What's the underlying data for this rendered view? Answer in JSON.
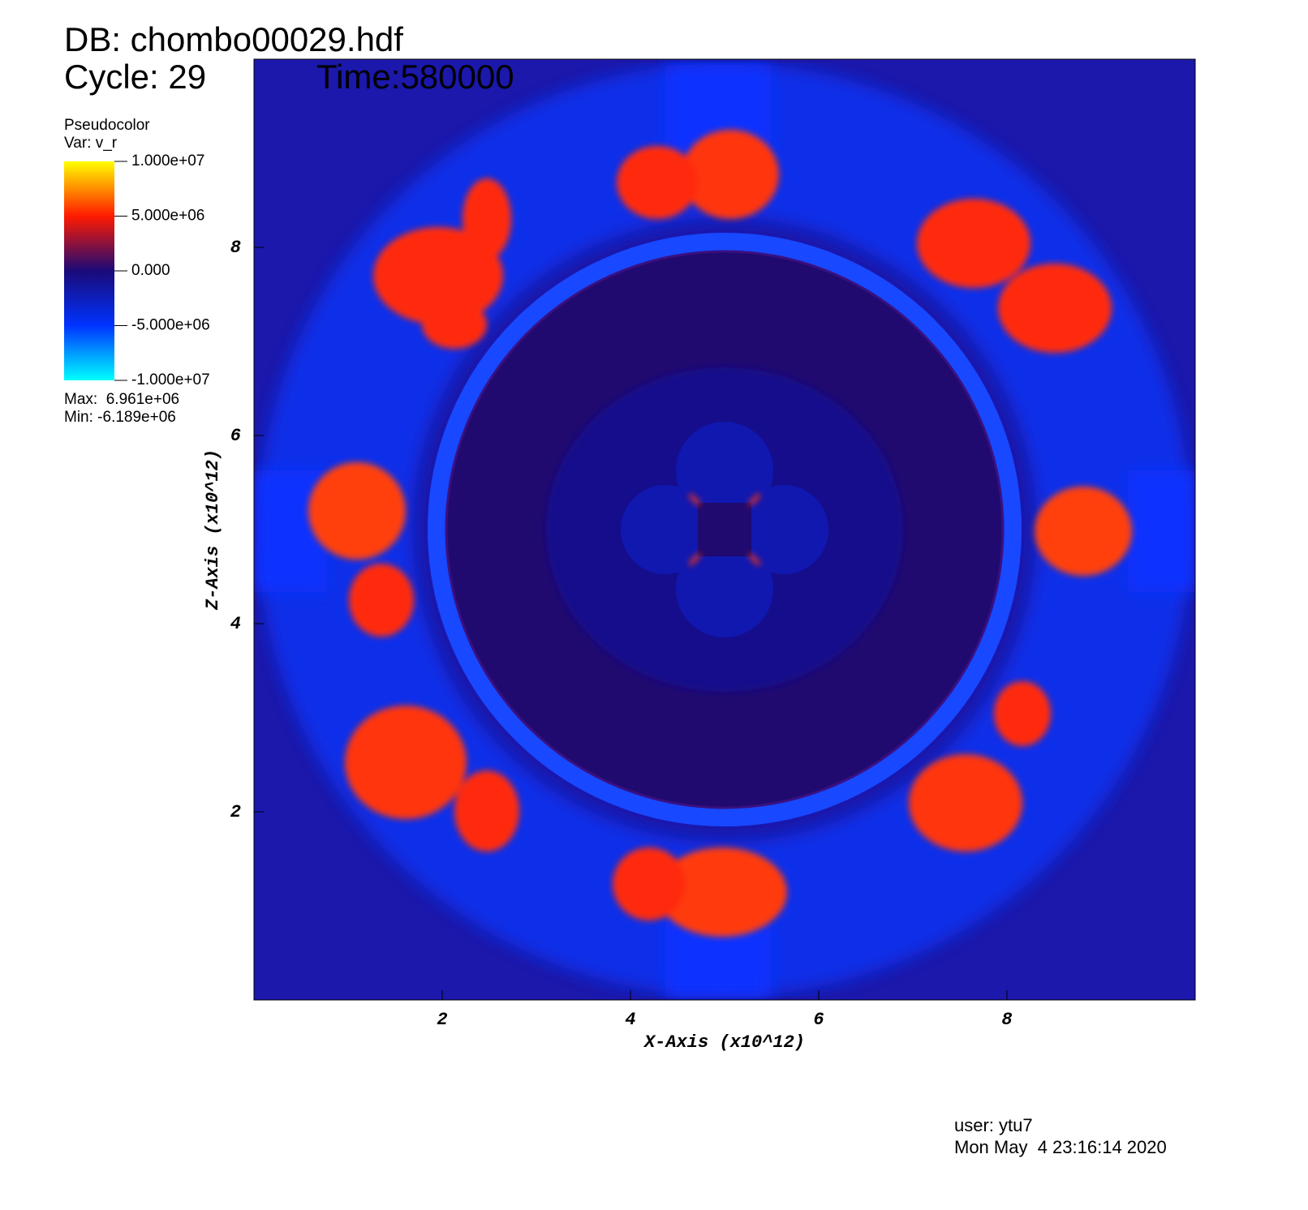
{
  "chart_data": {
    "type": "pseudocolor",
    "title": "DB: chombo00029.hdf",
    "cycle": "Cycle: 29",
    "time": "Time:580000",
    "legend_title": "Pseudocolor",
    "legend_var": "Var: v_r",
    "legend_max": "Max:  6.961e+06",
    "legend_min": "Min: -6.189e+06",
    "x_label": "X-Axis (x10^12)",
    "y_label": "Z-Axis (x10^12)",
    "xlim": [
      0,
      10
    ],
    "xticks": [
      2,
      4,
      6,
      8
    ],
    "ylim": [
      0,
      10
    ],
    "yticks": [
      2,
      4,
      6,
      8
    ],
    "clim": [
      -10000000,
      10000000
    ],
    "cticks": [
      {
        "value": 10000000,
        "label": "1.000e+07"
      },
      {
        "value": 5000000,
        "label": "5.000e+06"
      },
      {
        "value": 0,
        "label": "0.000"
      },
      {
        "value": -5000000,
        "label": "-5.000e+06"
      },
      {
        "value": -10000000,
        "label": "-1.000e+07"
      }
    ],
    "colormap": [
      "#00ffff",
      "#0033ff",
      "#1a0a78",
      "#ff1a00",
      "#ffff00"
    ],
    "user": "user: ytu7",
    "date": "Mon May  4 23:16:14 2020"
  }
}
